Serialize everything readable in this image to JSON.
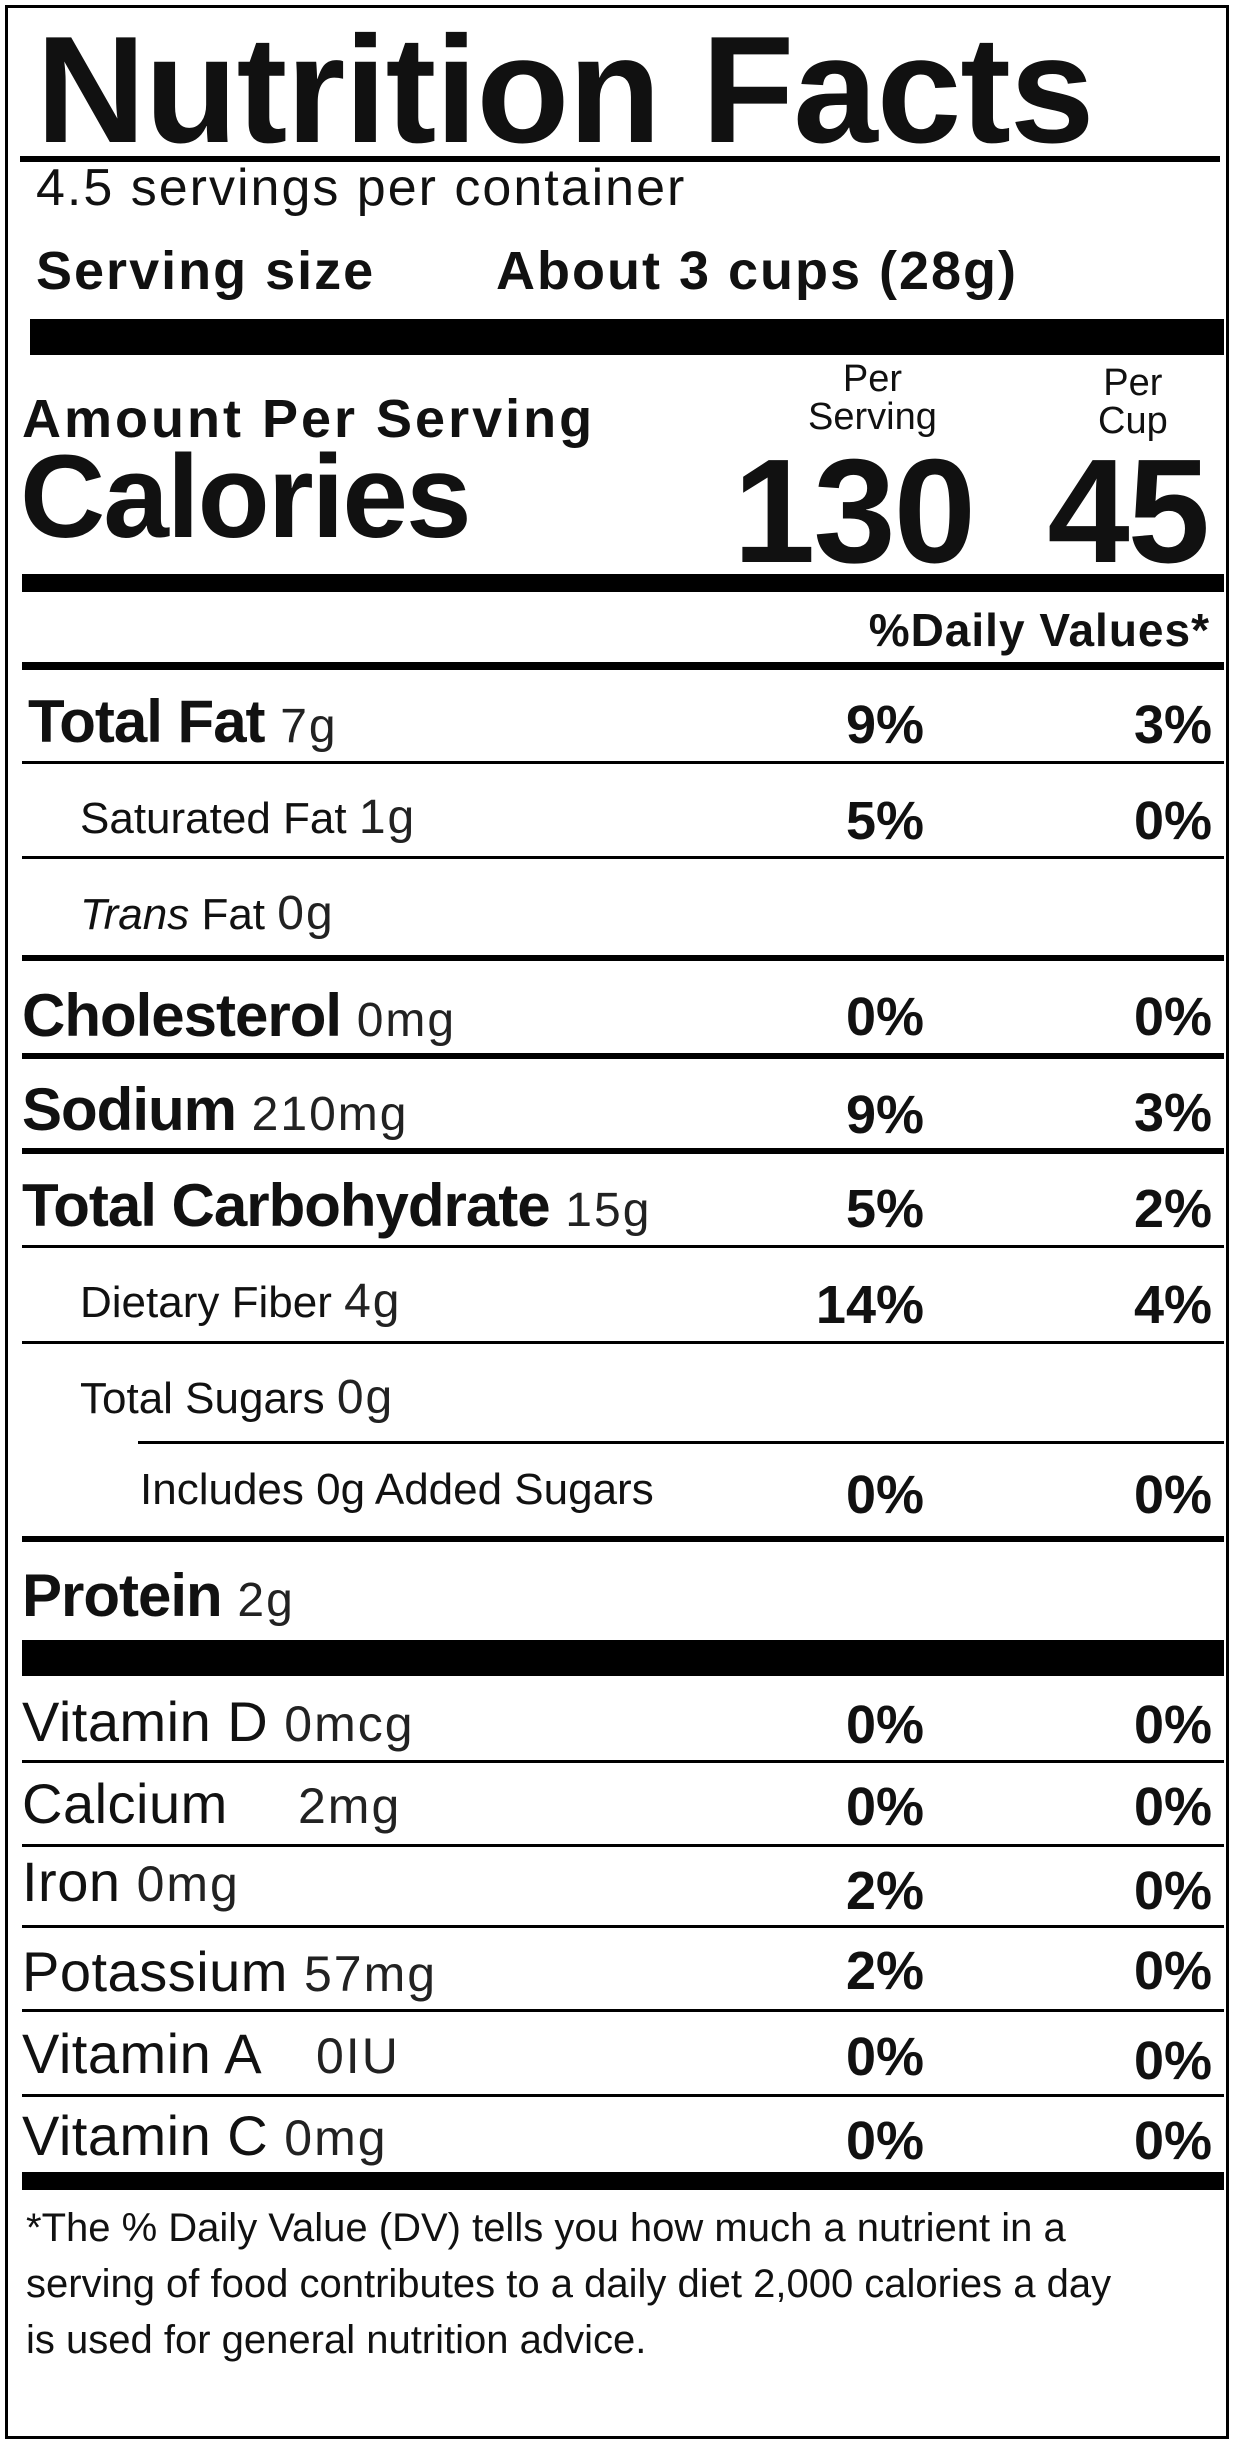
{
  "title": "Nutrition Facts",
  "servings_per_container": "4.5 servings per container",
  "serving_size_label": "Serving size",
  "serving_size_value": "About 3 cups (28g)",
  "amount_per_serving": "Amount Per Serving",
  "calories_label": "Calories",
  "col_serving_top": "Per",
  "col_serving_bottom": "Serving",
  "col_cup_top": "Per",
  "col_cup_bottom": "Cup",
  "calories_per_serving": "130",
  "calories_per_cup": "45",
  "daily_values_header": "%Daily Values*",
  "nutrients": [
    {
      "name": "Total Fat",
      "amount": "7g",
      "dv_serving": "9%",
      "dv_cup": "3%"
    },
    {
      "name": "Saturated Fat",
      "amount": "1g",
      "dv_serving": "5%",
      "dv_cup": "0%"
    },
    {
      "name_italic": "Trans",
      "name": "Fat",
      "amount": "0g"
    },
    {
      "name": "Cholesterol",
      "amount": "0mg",
      "dv_serving": "0%",
      "dv_cup": "0%"
    },
    {
      "name": "Sodium",
      "amount": "210mg",
      "dv_serving": "9%",
      "dv_cup": "3%"
    },
    {
      "name": "Total Carbohydrate",
      "amount": "15g",
      "dv_serving": "5%",
      "dv_cup": "2%"
    },
    {
      "name": "Dietary Fiber",
      "amount": "4g",
      "dv_serving": "14%",
      "dv_cup": "4%"
    },
    {
      "name": "Total Sugars",
      "amount": "0g"
    },
    {
      "name": "Includes 0g Added Sugars",
      "dv_serving": "0%",
      "dv_cup": "0%"
    },
    {
      "name": "Protein",
      "amount": "2g"
    }
  ],
  "vitamins": [
    {
      "name": "Vitamin D",
      "amount": "0mcg",
      "dv_serving": "0%",
      "dv_cup": "0%"
    },
    {
      "name": "Calcium",
      "amount": "2mg",
      "dv_serving": "0%",
      "dv_cup": "0%"
    },
    {
      "name": "Iron",
      "amount": "0mg",
      "dv_serving": "2%",
      "dv_cup": "0%"
    },
    {
      "name": "Potassium",
      "amount": "57mg",
      "dv_serving": "2%",
      "dv_cup": "0%"
    },
    {
      "name": "Vitamin A",
      "amount": "0IU",
      "dv_serving": "0%",
      "dv_cup": "0%"
    },
    {
      "name": "Vitamin C",
      "amount": "0mg",
      "dv_serving": "0%",
      "dv_cup": "0%"
    }
  ],
  "footnote": "*The % Daily Value (DV) tells you how much a nutrient in a serving of food contributes to a daily diet 2,000 calories a day is used for general nutrition advice."
}
